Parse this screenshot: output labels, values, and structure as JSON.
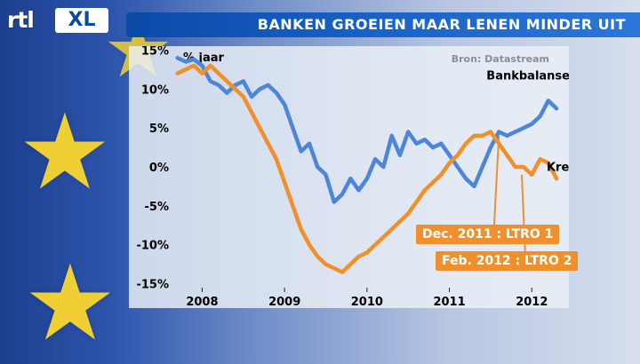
{
  "header": {
    "logo_text": "rtl XL",
    "title": "BANKEN GROEIEN MAAR LENEN MINDER UIT"
  },
  "chart_data": {
    "type": "line",
    "unit_label": "% jaar",
    "source": "Bron: Datastream",
    "x_tick_labels": [
      "2008",
      "2009",
      "2010",
      "2011",
      "2012"
    ],
    "x_ticks": [
      2008.0,
      2009.0,
      2010.0,
      2011.0,
      2012.0
    ],
    "xlim": [
      2007.65,
      2012.45
    ],
    "y_tick_labels": [
      "15%",
      "10%",
      "5%",
      "0%",
      "-5%",
      "-10%",
      "-15%"
    ],
    "y_ticks": [
      15,
      10,
      5,
      0,
      -5,
      -10,
      -15
    ],
    "ylim": [
      -15.5,
      15.5
    ],
    "series": [
      {
        "name": "Bankbalansen Eurozone",
        "color": "#4d86d8",
        "x": [
          2007.7,
          2007.8,
          2007.9,
          2008.0,
          2008.1,
          2008.2,
          2008.3,
          2008.4,
          2008.5,
          2008.6,
          2008.7,
          2008.8,
          2008.9,
          2009.0,
          2009.1,
          2009.2,
          2009.3,
          2009.4,
          2009.5,
          2009.6,
          2009.7,
          2009.8,
          2009.9,
          2010.0,
          2010.1,
          2010.2,
          2010.3,
          2010.4,
          2010.5,
          2010.6,
          2010.7,
          2010.8,
          2010.9,
          2011.0,
          2011.1,
          2011.2,
          2011.3,
          2011.4,
          2011.5,
          2011.6,
          2011.7,
          2011.8,
          2011.9,
          2012.0,
          2012.1,
          2012.2,
          2012.3
        ],
        "y": [
          14.0,
          13.5,
          13.8,
          13.0,
          11.0,
          10.5,
          9.5,
          10.5,
          11.0,
          9.0,
          10.0,
          10.5,
          9.5,
          8.0,
          5.0,
          2.0,
          3.0,
          0.0,
          -1.0,
          -4.5,
          -3.5,
          -1.5,
          -3.0,
          -1.5,
          1.0,
          0.0,
          4.0,
          1.5,
          4.5,
          3.0,
          3.5,
          2.5,
          3.0,
          1.5,
          0.0,
          -1.5,
          -2.5,
          0.0,
          2.5,
          4.5,
          4.0,
          4.5,
          5.0,
          5.5,
          6.5,
          8.5,
          7.5
        ]
      },
      {
        "name": "Krediet",
        "color": "#f0902c",
        "x": [
          2007.7,
          2007.8,
          2007.9,
          2008.0,
          2008.1,
          2008.2,
          2008.3,
          2008.4,
          2008.5,
          2008.6,
          2008.7,
          2008.8,
          2008.9,
          2009.0,
          2009.1,
          2009.2,
          2009.3,
          2009.4,
          2009.5,
          2009.6,
          2009.7,
          2009.8,
          2009.9,
          2010.0,
          2010.1,
          2010.2,
          2010.3,
          2010.4,
          2010.5,
          2010.6,
          2010.7,
          2010.8,
          2010.9,
          2011.0,
          2011.1,
          2011.2,
          2011.3,
          2011.4,
          2011.5,
          2011.6,
          2011.7,
          2011.8,
          2011.9,
          2012.0,
          2012.1,
          2012.2,
          2012.3
        ],
        "y": [
          12.0,
          12.5,
          13.0,
          12.0,
          13.0,
          12.0,
          11.0,
          10.0,
          9.0,
          7.0,
          5.0,
          3.0,
          1.0,
          -2.0,
          -5.0,
          -8.0,
          -10.0,
          -11.5,
          -12.5,
          -13.0,
          -13.5,
          -12.5,
          -11.5,
          -11.0,
          -10.0,
          -9.0,
          -8.0,
          -7.0,
          -6.0,
          -4.5,
          -3.0,
          -2.0,
          -1.0,
          0.5,
          1.5,
          3.0,
          4.0,
          4.0,
          4.5,
          3.0,
          1.5,
          0.0,
          0.0,
          -1.0,
          1.0,
          0.5,
          -1.5
        ]
      }
    ],
    "annotations": [
      {
        "text": "Dec. 2011 : LTRO 1",
        "x": 2011.6
      },
      {
        "text": "Feb. 2012 : LTRO 2",
        "x": 2011.9
      }
    ]
  }
}
